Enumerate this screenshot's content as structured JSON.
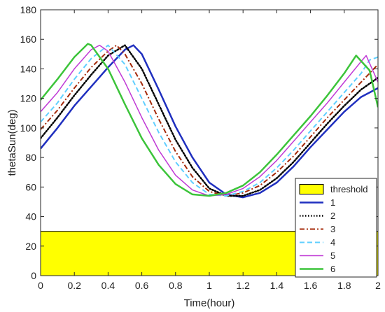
{
  "chart_data": {
    "type": "line",
    "title": "",
    "xlabel": "Time(hour)",
    "ylabel": "thetaSun(deg)",
    "xlim": [
      0,
      2
    ],
    "ylim": [
      0,
      180
    ],
    "xticks": [
      "0",
      "0.2",
      "0.4",
      "0.6",
      "0.8",
      "1",
      "1.2",
      "1.4",
      "1.6",
      "1.8",
      "2"
    ],
    "yticks": [
      "0",
      "20",
      "40",
      "60",
      "80",
      "100",
      "120",
      "140",
      "160",
      "180"
    ],
    "grid": false,
    "legend_position": "bottom-right",
    "threshold": {
      "name": "threshold",
      "value": 30,
      "color": "#ffff00"
    },
    "series": [
      {
        "name": "1",
        "color": "#1f2fbf",
        "style": "solid",
        "width": 2.5,
        "x": [
          0,
          0.1,
          0.2,
          0.3,
          0.4,
          0.5,
          0.55,
          0.6,
          0.7,
          0.8,
          0.9,
          1.0,
          1.1,
          1.2,
          1.3,
          1.4,
          1.5,
          1.6,
          1.7,
          1.8,
          1.9,
          2.0
        ],
        "y": [
          86,
          100,
          115,
          128,
          141,
          153,
          156,
          150,
          126,
          101,
          80,
          63,
          55,
          53,
          56,
          63,
          74,
          87,
          99,
          111,
          121,
          127
        ]
      },
      {
        "name": "2",
        "color": "#000000",
        "style": "dotted",
        "width": 2.5,
        "x": [
          0,
          0.1,
          0.2,
          0.3,
          0.4,
          0.5,
          0.6,
          0.7,
          0.8,
          0.9,
          1.0,
          1.1,
          1.2,
          1.3,
          1.4,
          1.5,
          1.6,
          1.7,
          1.8,
          1.9,
          2.0
        ],
        "y": [
          93,
          107,
          122,
          136,
          149,
          156,
          140,
          116,
          92,
          73,
          59,
          54,
          54,
          58,
          66,
          77,
          90,
          103,
          115,
          126,
          134
        ]
      },
      {
        "name": "3",
        "color": "#a52a0a",
        "style": "dashdot",
        "width": 2,
        "x": [
          0,
          0.1,
          0.2,
          0.3,
          0.4,
          0.45,
          0.5,
          0.6,
          0.7,
          0.8,
          0.9,
          1.0,
          1.1,
          1.2,
          1.3,
          1.4,
          1.5,
          1.6,
          1.7,
          1.8,
          1.9,
          2.0
        ],
        "y": [
          99,
          112,
          127,
          141,
          152,
          156,
          150,
          130,
          106,
          84,
          67,
          57,
          54,
          56,
          61,
          70,
          81,
          94,
          107,
          119,
          131,
          143
        ]
      },
      {
        "name": "4",
        "color": "#5fcfff",
        "style": "dashed",
        "width": 2,
        "x": [
          0,
          0.1,
          0.2,
          0.3,
          0.4,
          0.5,
          0.6,
          0.7,
          0.8,
          0.9,
          1.0,
          1.1,
          1.2,
          1.3,
          1.4,
          1.5,
          1.6,
          1.7,
          1.8,
          1.9,
          1.95,
          2.0
        ],
        "y": [
          104,
          117,
          133,
          147,
          156,
          143,
          120,
          97,
          77,
          63,
          55,
          54,
          57,
          63,
          73,
          85,
          98,
          111,
          124,
          137,
          146,
          148
        ]
      },
      {
        "name": "5",
        "color": "#c03ad6",
        "style": "solid",
        "width": 1.5,
        "x": [
          0,
          0.1,
          0.2,
          0.3,
          0.35,
          0.4,
          0.5,
          0.6,
          0.7,
          0.8,
          0.9,
          1.0,
          1.1,
          1.2,
          1.3,
          1.4,
          1.5,
          1.6,
          1.7,
          1.8,
          1.9,
          1.93,
          2.0
        ],
        "y": [
          111,
          124,
          140,
          153,
          156,
          152,
          131,
          107,
          85,
          68,
          58,
          54,
          55,
          59,
          67,
          78,
          91,
          104,
          117,
          131,
          145,
          149,
          131
        ]
      },
      {
        "name": "6",
        "color": "#3cc43a",
        "style": "solid",
        "width": 2.5,
        "x": [
          0,
          0.1,
          0.2,
          0.28,
          0.3,
          0.4,
          0.5,
          0.6,
          0.7,
          0.8,
          0.9,
          1.0,
          1.1,
          1.2,
          1.3,
          1.4,
          1.5,
          1.6,
          1.7,
          1.8,
          1.87,
          1.95,
          2.0
        ],
        "y": [
          119,
          133,
          148,
          157,
          156,
          140,
          116,
          93,
          75,
          62,
          55,
          54,
          56,
          61,
          70,
          82,
          95,
          108,
          122,
          137,
          149,
          139,
          114
        ]
      }
    ]
  }
}
